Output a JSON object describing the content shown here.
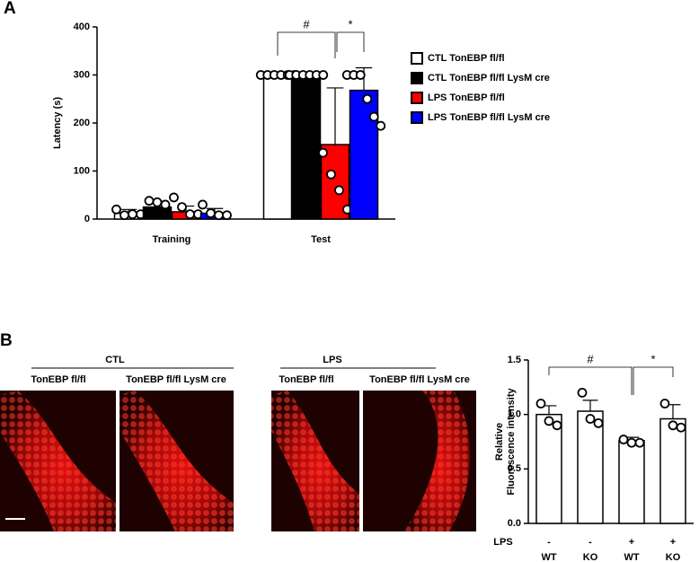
{
  "chart_data": [
    {
      "type": "bar",
      "panel_label": "A",
      "y_label": "Latency (s)",
      "categories": [
        "Training",
        "Test"
      ],
      "series": [
        {
          "name": "CTL TonEBP fl/fl",
          "color": "#ffffff",
          "values": [
            12,
            300
          ],
          "errors": [
            8,
            0
          ],
          "points": [
            [
              20,
              8,
              10,
              10
            ],
            [
              300,
              300,
              300,
              300,
              300,
              300
            ]
          ]
        },
        {
          "name": "CTL TonEBP fl/fl LysM cre",
          "color": "#000000",
          "values": [
            25,
            300
          ],
          "errors": [
            12,
            0
          ],
          "points": [
            [
              38,
              35,
              30
            ],
            [
              300,
              300,
              300,
              300,
              300,
              300
            ]
          ]
        },
        {
          "name": "LPS TonEBP fl/fl",
          "color": "#ff0000",
          "values": [
            15,
            155
          ],
          "errors": [
            12,
            118
          ],
          "points": [
            [
              45,
              25,
              10,
              10
            ],
            [
              138,
              93,
              60,
              20
            ]
          ]
        },
        {
          "name": "LPS TonEBP fl/fl LysM cre",
          "color": "#0000ff",
          "values": [
            12,
            268
          ],
          "errors": [
            10,
            47
          ],
          "points": [
            [
              30,
              12,
              8,
              8
            ],
            [
              300,
              300,
              300,
              250,
              213,
              194
            ]
          ]
        }
      ],
      "ylim": [
        0,
        400
      ],
      "yticks": [
        0,
        100,
        200,
        300,
        400
      ],
      "annotations": [
        "#",
        "*"
      ]
    },
    {
      "type": "bar",
      "panel_label": "B",
      "y_label": [
        "Relative",
        "Fluorescence intensity"
      ],
      "group_labels": [
        "CTL",
        "LPS"
      ],
      "image_labels": [
        "TonEBP fl/fl",
        "TonEBP fl/fl LysM cre",
        "TonEBP fl/fl",
        "TonEBP fl/fl LysM cre"
      ],
      "row_label": "LPS",
      "lps": [
        "-",
        "-",
        "+",
        "+"
      ],
      "categories": [
        "WT",
        "KO",
        "WT",
        "KO"
      ],
      "color": "#ffffff",
      "values": [
        1.0,
        1.03,
        0.76,
        0.96
      ],
      "errors": [
        0.08,
        0.1,
        0.03,
        0.13
      ],
      "points": [
        [
          1.1,
          0.94,
          0.9
        ],
        [
          1.2,
          0.96,
          0.92
        ],
        [
          0.77,
          0.74,
          0.74
        ],
        [
          1.1,
          0.9,
          0.88
        ]
      ],
      "ylim": [
        0,
        1.5
      ],
      "yticks": [
        {
          "value": 0,
          "label": "0.0"
        },
        {
          "value": 0.5,
          "label": "0.5"
        },
        {
          "value": 1.0,
          "label": "1.0"
        },
        {
          "value": 1.5,
          "label": "1.5"
        }
      ],
      "annotations": [
        "#",
        "*"
      ]
    }
  ]
}
